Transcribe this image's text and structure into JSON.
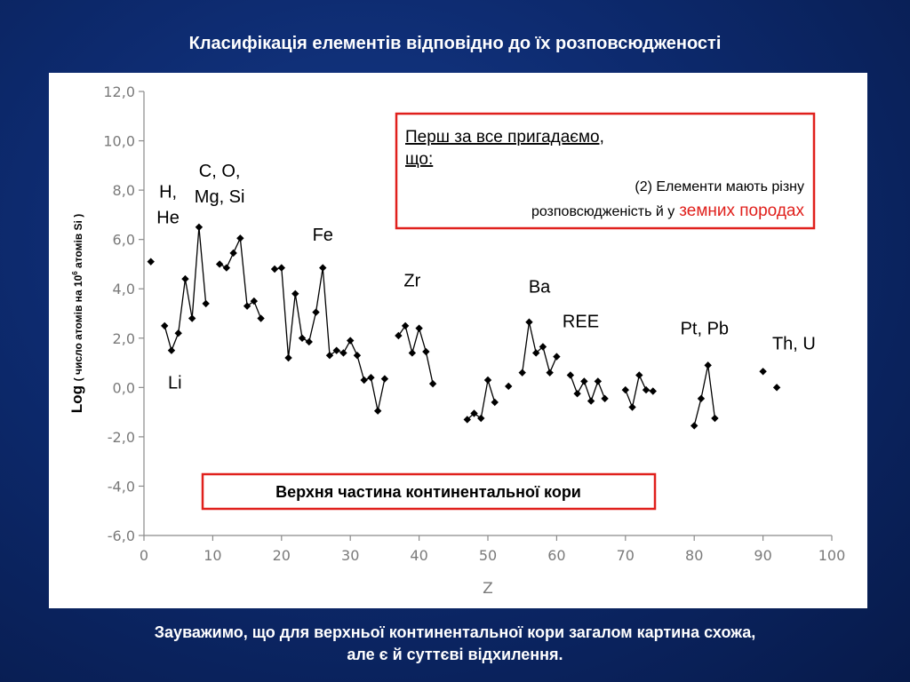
{
  "slide": {
    "title": "Класифікація елементів відповідно до їх розповсюдженості",
    "footer_line1": "Зауважимо, що для верхньої континентальної кори загалом картина схожа,",
    "footer_line2": "але є й суттєві відхилення."
  },
  "colors": {
    "background": "#0d2a6e",
    "data_line": "#000000",
    "box_border": "#e0201c",
    "highlight_text": "#e0201c"
  },
  "callout": {
    "heading_line1": "Перш за все пригадаємо,",
    "heading_line2": "що:",
    "line1": "(2) Елементи мають різну",
    "line2_prefix": "розповсюдженість й у",
    "line2_highlight": "земних породах"
  },
  "caption": "Верхня частина континентальної кори",
  "chart_data": {
    "type": "line",
    "xlabel": "Z",
    "ylabel_prefix": "Log",
    "ylabel_detail": "( число атомів на 10",
    "ylabel_sup": "6",
    "ylabel_suffix": " атомів Si )",
    "xlim": [
      0,
      100
    ],
    "ylim": [
      -6,
      12
    ],
    "x_ticks": [
      "0",
      "10",
      "20",
      "30",
      "40",
      "50",
      "60",
      "70",
      "80",
      "90",
      "100"
    ],
    "y_ticks": [
      "12,0",
      "10,0",
      "8,0",
      "6,0",
      "4,0",
      "2,0",
      "0,0",
      "-2,0",
      "-4,0",
      "-6,0"
    ],
    "grid": false,
    "markers": "filled-diamond",
    "segments": [
      [
        [
          1,
          5.1
        ]
      ],
      [
        [
          3,
          2.5
        ],
        [
          4,
          1.5
        ],
        [
          5,
          2.2
        ],
        [
          6,
          4.4
        ],
        [
          7,
          2.8
        ],
        [
          8,
          6.5
        ],
        [
          9,
          3.4
        ]
      ],
      [
        [
          11,
          5.0
        ],
        [
          12,
          4.85
        ],
        [
          13,
          5.45
        ],
        [
          14,
          6.05
        ],
        [
          15,
          3.3
        ],
        [
          16,
          3.5
        ],
        [
          17,
          2.8
        ]
      ],
      [
        [
          19,
          4.8
        ],
        [
          20,
          4.85
        ],
        [
          21,
          1.2
        ],
        [
          22,
          3.8
        ],
        [
          23,
          2.0
        ],
        [
          24,
          1.85
        ],
        [
          25,
          3.05
        ],
        [
          26,
          4.85
        ],
        [
          27,
          1.3
        ],
        [
          28,
          1.5
        ],
        [
          29,
          1.4
        ],
        [
          30,
          1.9
        ],
        [
          31,
          1.3
        ],
        [
          32,
          0.3
        ],
        [
          33,
          0.4
        ],
        [
          34,
          -0.95
        ],
        [
          35,
          0.35
        ]
      ],
      [
        [
          37,
          2.1
        ],
        [
          38,
          2.5
        ],
        [
          39,
          1.4
        ],
        [
          40,
          2.4
        ],
        [
          41,
          1.45
        ],
        [
          42,
          0.15
        ]
      ],
      [
        [
          47,
          -1.3
        ],
        [
          48,
          -1.05
        ],
        [
          49,
          -1.25
        ],
        [
          50,
          0.3
        ],
        [
          51,
          -0.6
        ]
      ],
      [
        [
          53,
          0.05
        ]
      ],
      [
        [
          55,
          0.6
        ],
        [
          56,
          2.65
        ],
        [
          57,
          1.4
        ],
        [
          58,
          1.65
        ],
        [
          59,
          0.6
        ],
        [
          60,
          1.25
        ]
      ],
      [
        [
          62,
          0.5
        ],
        [
          63,
          -0.25
        ],
        [
          64,
          0.25
        ],
        [
          65,
          -0.55
        ],
        [
          66,
          0.25
        ],
        [
          67,
          -0.45
        ]
      ],
      [
        [
          70,
          -0.1
        ],
        [
          71,
          -0.8
        ],
        [
          72,
          0.5
        ],
        [
          73,
          -0.1
        ],
        [
          74,
          -0.15
        ]
      ],
      [
        [
          80,
          -1.55
        ],
        [
          81,
          -0.45
        ],
        [
          82,
          0.9
        ],
        [
          83,
          -1.25
        ]
      ],
      [
        [
          90,
          0.65
        ]
      ],
      [
        [
          92,
          0.0
        ]
      ]
    ],
    "annotations": [
      {
        "lines": [
          "H,",
          "He"
        ],
        "x": 3.5,
        "y": 7.7
      },
      {
        "lines": [
          "C, O,",
          "Mg, Si"
        ],
        "x": 11.0,
        "y": 8.55
      },
      {
        "lines": [
          "Fe"
        ],
        "x": 26.0,
        "y": 5.95
      },
      {
        "lines": [
          "Li"
        ],
        "x": 4.5,
        "y": -0.05
      },
      {
        "lines": [
          "Zr"
        ],
        "x": 39.0,
        "y": 4.1
      },
      {
        "lines": [
          "Ba"
        ],
        "x": 57.5,
        "y": 3.85
      },
      {
        "lines": [
          "REE"
        ],
        "x": 63.5,
        "y": 2.45
      },
      {
        "lines": [
          "Pt, Pb"
        ],
        "x": 81.5,
        "y": 2.15
      },
      {
        "lines": [
          "Th, U"
        ],
        "x": 94.5,
        "y": 1.55
      }
    ]
  }
}
